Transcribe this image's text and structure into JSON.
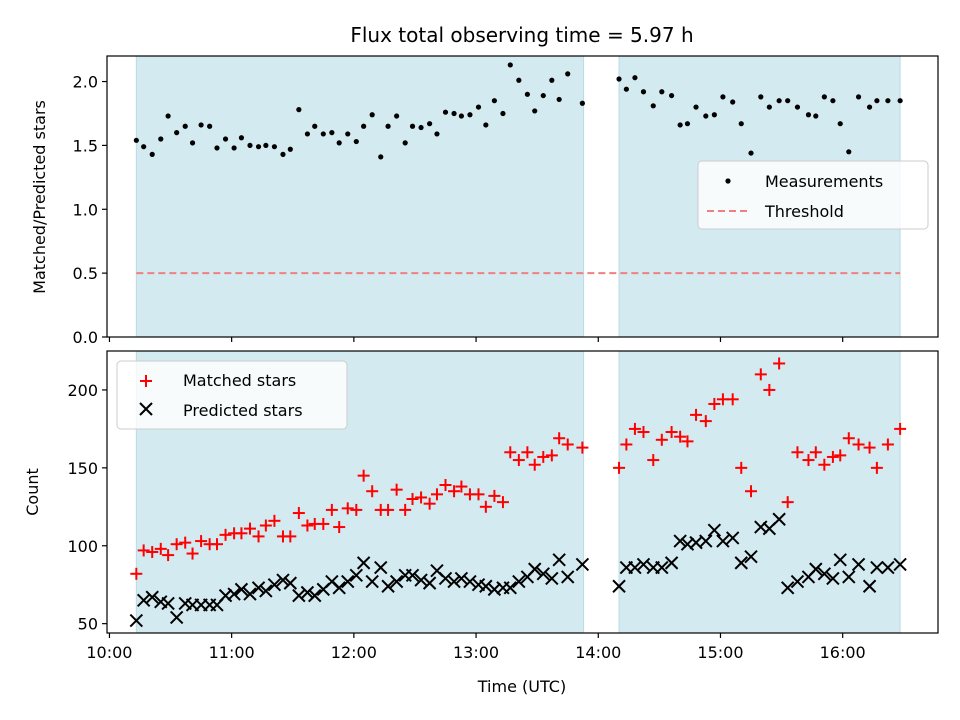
{
  "title": "Flux total observing time = 5.97 h",
  "chart_data": [
    {
      "type": "scatter",
      "panel": "top",
      "title": "Flux total observing time = 5.97 h",
      "xlabel": "",
      "ylabel": "Matched/Predicted stars",
      "xlim": [
        9.98,
        16.78
      ],
      "ylim": [
        0.0,
        2.2
      ],
      "yticks": [
        0.0,
        0.5,
        1.0,
        1.5,
        2.0
      ],
      "ytick_labels": [
        "0.0",
        "0.5",
        "1.0",
        "1.5",
        "2.0"
      ],
      "legend": {
        "placement": "center-right",
        "entries": [
          "Measurements",
          "Threshold"
        ]
      },
      "threshold": {
        "name": "Threshold",
        "value": 0.5,
        "x": [
          10.22,
          16.47
        ],
        "color": "#f08080",
        "style": "dashed"
      },
      "series": [
        {
          "name": "Measurements",
          "marker": "dot",
          "color": "#000000",
          "x": [
            10.22,
            10.28,
            10.35,
            10.42,
            10.48,
            10.55,
            10.62,
            10.68,
            10.75,
            10.82,
            10.88,
            10.95,
            11.02,
            11.08,
            11.15,
            11.22,
            11.28,
            11.35,
            11.42,
            11.48,
            11.55,
            11.62,
            11.68,
            11.75,
            11.82,
            11.88,
            11.95,
            12.02,
            12.08,
            12.15,
            12.22,
            12.28,
            12.35,
            12.42,
            12.48,
            12.55,
            12.62,
            12.68,
            12.75,
            12.82,
            12.88,
            12.95,
            13.02,
            13.08,
            13.15,
            13.22,
            13.28,
            13.35,
            13.42,
            13.48,
            13.55,
            13.62,
            13.68,
            13.75,
            13.87,
            14.17,
            14.23,
            14.3,
            14.37,
            14.45,
            14.52,
            14.6,
            14.67,
            14.73,
            14.8,
            14.88,
            14.95,
            15.02,
            15.1,
            15.17,
            15.25,
            15.33,
            15.4,
            15.48,
            15.55,
            15.63,
            15.72,
            15.78,
            15.85,
            15.92,
            15.98,
            16.05,
            16.13,
            16.22,
            16.28,
            16.37,
            16.47
          ],
          "y": [
            1.54,
            1.49,
            1.43,
            1.55,
            1.73,
            1.6,
            1.65,
            1.52,
            1.66,
            1.65,
            1.48,
            1.55,
            1.48,
            1.56,
            1.5,
            1.49,
            1.5,
            1.49,
            1.43,
            1.47,
            1.78,
            1.59,
            1.65,
            1.59,
            1.6,
            1.52,
            1.59,
            1.53,
            1.65,
            1.74,
            1.41,
            1.65,
            1.73,
            1.52,
            1.65,
            1.64,
            1.67,
            1.59,
            1.76,
            1.75,
            1.73,
            1.74,
            1.8,
            1.66,
            1.85,
            1.75,
            2.13,
            2.01,
            1.9,
            1.77,
            1.89,
            2.01,
            1.86,
            2.06,
            1.83,
            2.02,
            1.94,
            2.03,
            1.92,
            1.81,
            1.92,
            1.89,
            1.66,
            1.67,
            1.8,
            1.73,
            1.74,
            1.88,
            1.84,
            1.67,
            1.44,
            1.88,
            1.8,
            1.85,
            1.85,
            1.8,
            1.74,
            1.73,
            1.88,
            1.85,
            1.67,
            1.45,
            1.88,
            1.8,
            1.85,
            1.85,
            1.85
          ]
        }
      ]
    },
    {
      "type": "scatter",
      "panel": "bottom",
      "xlabel": "Time (UTC)",
      "ylabel": "Count",
      "xlim": [
        9.98,
        16.78
      ],
      "ylim": [
        44,
        225
      ],
      "yticks": [
        50,
        100,
        150,
        200
      ],
      "ytick_labels": [
        "50",
        "100",
        "150",
        "200"
      ],
      "xticks": [
        10,
        11,
        12,
        13,
        14,
        15,
        16
      ],
      "xtick_labels": [
        "10:00",
        "11:00",
        "12:00",
        "13:00",
        "14:00",
        "15:00",
        "16:00"
      ],
      "legend": {
        "placement": "top-left",
        "entries": [
          "Matched stars",
          "Predicted stars"
        ]
      },
      "series": [
        {
          "name": "Matched stars",
          "marker": "plus",
          "color": "#ff0000",
          "x": [
            10.22,
            10.28,
            10.35,
            10.42,
            10.48,
            10.55,
            10.62,
            10.68,
            10.75,
            10.82,
            10.88,
            10.95,
            11.02,
            11.08,
            11.15,
            11.22,
            11.28,
            11.35,
            11.42,
            11.48,
            11.55,
            11.62,
            11.68,
            11.75,
            11.82,
            11.88,
            11.95,
            12.02,
            12.08,
            12.15,
            12.22,
            12.28,
            12.35,
            12.42,
            12.48,
            12.55,
            12.62,
            12.68,
            12.75,
            12.82,
            12.88,
            12.95,
            13.02,
            13.08,
            13.15,
            13.22,
            13.28,
            13.35,
            13.42,
            13.48,
            13.55,
            13.62,
            13.68,
            13.75,
            13.87,
            14.17,
            14.23,
            14.3,
            14.37,
            14.45,
            14.52,
            14.6,
            14.67,
            14.73,
            14.8,
            14.88,
            14.95,
            15.02,
            15.1,
            15.17,
            15.25,
            15.33,
            15.4,
            15.48,
            15.55,
            15.63,
            15.72,
            15.78,
            15.85,
            15.92,
            15.98,
            16.05,
            16.13,
            16.22,
            16.28,
            16.37,
            16.47
          ],
          "y": [
            82,
            97,
            96,
            98,
            94,
            101,
            102,
            95,
            103,
            101,
            101,
            107,
            108,
            108,
            111,
            106,
            113,
            116,
            106,
            106,
            121,
            113,
            114,
            114,
            123,
            112,
            124,
            123,
            145,
            135,
            123,
            123,
            136,
            123,
            130,
            131,
            127,
            133,
            139,
            135,
            138,
            133,
            133,
            125,
            132,
            128,
            160,
            155,
            160,
            152,
            157,
            158,
            169,
            165,
            163,
            150,
            165,
            175,
            173,
            155,
            168,
            173,
            170,
            167,
            184,
            180,
            191,
            194,
            194,
            150,
            135,
            210,
            200,
            217,
            128,
            160,
            155,
            160,
            152,
            157,
            158,
            169,
            165,
            163,
            150,
            165,
            175
          ],
          "note": "approximate readings"
        },
        {
          "name": "Predicted stars",
          "marker": "x",
          "color": "#000000",
          "x": [
            10.22,
            10.28,
            10.35,
            10.42,
            10.48,
            10.55,
            10.62,
            10.68,
            10.75,
            10.82,
            10.88,
            10.95,
            11.02,
            11.08,
            11.15,
            11.22,
            11.28,
            11.35,
            11.42,
            11.48,
            11.55,
            11.62,
            11.68,
            11.75,
            11.82,
            11.88,
            11.95,
            12.02,
            12.08,
            12.15,
            12.22,
            12.28,
            12.35,
            12.42,
            12.48,
            12.55,
            12.62,
            12.68,
            12.75,
            12.82,
            12.88,
            12.95,
            13.02,
            13.08,
            13.15,
            13.22,
            13.28,
            13.35,
            13.42,
            13.48,
            13.55,
            13.62,
            13.68,
            13.75,
            13.87,
            14.17,
            14.23,
            14.3,
            14.37,
            14.45,
            14.52,
            14.6,
            14.67,
            14.73,
            14.8,
            14.88,
            14.95,
            15.02,
            15.1,
            15.17,
            15.25,
            15.33,
            15.4,
            15.48,
            15.55,
            15.63,
            15.72,
            15.78,
            15.85,
            15.92,
            15.98,
            16.05,
            16.13,
            16.22,
            16.28,
            16.37,
            16.47
          ],
          "y": [
            52,
            65,
            67,
            64,
            63,
            54,
            63,
            62,
            62,
            62,
            62,
            68,
            69,
            72,
            69,
            73,
            71,
            75,
            78,
            76,
            68,
            70,
            68,
            72,
            77,
            73,
            77,
            81,
            89,
            77,
            86,
            74,
            77,
            81,
            81,
            78,
            76,
            84,
            79,
            77,
            79,
            77,
            75,
            74,
            72,
            73,
            73,
            77,
            80,
            85,
            82,
            79,
            91,
            80,
            88,
            74,
            86,
            86,
            88,
            86,
            86,
            89,
            103,
            101,
            102,
            103,
            110,
            103,
            105,
            89,
            93,
            112,
            111,
            117,
            73,
            77,
            80,
            85,
            82,
            79,
            91,
            80,
            88,
            74,
            86,
            86,
            88
          ],
          "note": "approximate readings"
        }
      ]
    }
  ],
  "coverage_bands": [
    {
      "start": 10.22,
      "end": 13.88
    },
    {
      "start": 14.17,
      "end": 16.47
    }
  ],
  "colors": {
    "band_fill": "#d4eaf1",
    "band_edge": "#b9dbe5",
    "measurement": "#000000",
    "threshold": "#f08080",
    "matched": "#ff0000",
    "predicted": "#000000"
  }
}
